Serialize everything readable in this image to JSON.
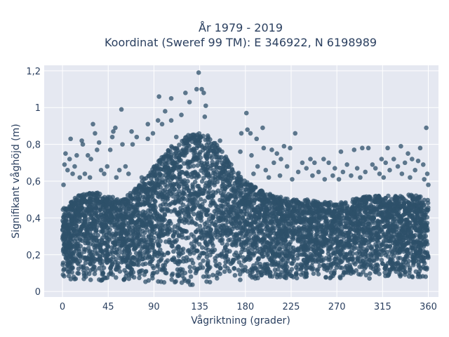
{
  "chart_data": {
    "type": "scatter",
    "title": "År 1979 - 2019",
    "subtitle": "Koordinat (Sweref 99 TM): E 346922, N 6198989",
    "xlabel": "Vågriktning (grader)",
    "ylabel": "Signifikant våghöjd (m)",
    "xlim": [
      -18,
      370
    ],
    "ylim": [
      -0.03,
      1.23
    ],
    "xticks": [
      0,
      45,
      90,
      135,
      180,
      225,
      270,
      315,
      360
    ],
    "xtick_labels": [
      "0",
      "45",
      "90",
      "135",
      "180",
      "225",
      "270",
      "315",
      "360"
    ],
    "yticks": [
      0,
      0.2,
      0.4,
      0.6,
      0.8,
      1.0,
      1.2
    ],
    "ytick_labels": [
      "0",
      "0,2",
      "0,4",
      "0,6",
      "0,8",
      "1",
      "1,2"
    ],
    "grid": true,
    "marker_color": "#2e5069",
    "plot_background": "#e5e8f1",
    "dense_envelope": {
      "direction": [
        0,
        15,
        30,
        45,
        60,
        75,
        90,
        105,
        120,
        135,
        150,
        165,
        180,
        195,
        210,
        225,
        240,
        255,
        270,
        285,
        300,
        315,
        330,
        345,
        360
      ],
      "min_height": [
        0.06,
        0.06,
        0.06,
        0.05,
        0.05,
        0.05,
        0.04,
        0.03,
        0.03,
        0.03,
        0.04,
        0.05,
        0.06,
        0.06,
        0.07,
        0.07,
        0.07,
        0.07,
        0.07,
        0.07,
        0.07,
        0.07,
        0.07,
        0.07,
        0.07
      ],
      "max_height": [
        0.45,
        0.52,
        0.55,
        0.52,
        0.5,
        0.58,
        0.68,
        0.78,
        0.84,
        0.88,
        0.82,
        0.7,
        0.6,
        0.55,
        0.52,
        0.5,
        0.5,
        0.49,
        0.48,
        0.5,
        0.52,
        0.52,
        0.52,
        0.53,
        0.5
      ]
    },
    "points": [
      [
        134,
        1.19
      ],
      [
        121,
        1.08
      ],
      [
        132,
        1.1
      ],
      [
        137,
        1.1
      ],
      [
        139,
        1.08
      ],
      [
        107,
        1.05
      ],
      [
        95,
        1.06
      ],
      [
        125,
        1.03
      ],
      [
        141,
        1.01
      ],
      [
        58,
        0.99
      ],
      [
        101,
        0.98
      ],
      [
        181,
        0.97
      ],
      [
        117,
        0.96
      ],
      [
        140,
        0.95
      ],
      [
        94,
        0.93
      ],
      [
        107,
        0.93
      ],
      [
        84,
        0.91
      ],
      [
        98,
        0.91
      ],
      [
        30,
        0.91
      ],
      [
        197,
        0.89
      ],
      [
        358,
        0.89
      ],
      [
        52,
        0.89
      ],
      [
        182,
        0.88
      ],
      [
        50,
        0.87
      ],
      [
        32,
        0.86
      ],
      [
        68,
        0.87
      ],
      [
        176,
        0.86
      ],
      [
        185,
        0.86
      ],
      [
        89,
        0.86
      ],
      [
        229,
        0.86
      ],
      [
        73,
        0.84
      ],
      [
        112,
        0.84
      ],
      [
        49,
        0.84
      ],
      [
        191,
        0.83
      ],
      [
        84,
        0.83
      ],
      [
        155,
        0.82
      ],
      [
        8,
        0.83
      ],
      [
        19,
        0.82
      ],
      [
        36,
        0.81
      ],
      [
        20,
        0.8
      ],
      [
        69,
        0.8
      ],
      [
        59,
        0.8
      ],
      [
        333,
        0.79
      ],
      [
        218,
        0.79
      ],
      [
        198,
        0.78
      ],
      [
        320,
        0.78
      ],
      [
        224,
        0.78
      ],
      [
        295,
        0.78
      ],
      [
        301,
        0.78
      ],
      [
        352,
        0.78
      ],
      [
        34,
        0.77
      ],
      [
        47,
        0.77
      ],
      [
        206,
        0.77
      ],
      [
        287,
        0.77
      ],
      [
        274,
        0.76
      ],
      [
        157,
        0.76
      ],
      [
        175,
        0.76
      ],
      [
        211,
        0.75
      ],
      [
        340,
        0.75
      ],
      [
        3,
        0.75
      ],
      [
        14,
        0.74
      ],
      [
        25,
        0.74
      ],
      [
        186,
        0.74
      ],
      [
        7,
        0.72
      ],
      [
        28,
        0.72
      ],
      [
        215,
        0.72
      ],
      [
        244,
        0.72
      ],
      [
        257,
        0.72
      ],
      [
        314,
        0.72
      ],
      [
        326,
        0.72
      ],
      [
        344,
        0.72
      ],
      [
        350,
        0.71
      ],
      [
        208,
        0.7
      ],
      [
        236,
        0.7
      ],
      [
        248,
        0.7
      ],
      [
        262,
        0.7
      ],
      [
        280,
        0.69
      ],
      [
        305,
        0.69
      ],
      [
        318,
        0.7
      ],
      [
        337,
        0.7
      ],
      [
        2,
        0.69
      ],
      [
        12,
        0.68
      ],
      [
        44,
        0.68
      ],
      [
        62,
        0.68
      ],
      [
        192,
        0.68
      ],
      [
        221,
        0.68
      ],
      [
        240,
        0.67
      ],
      [
        268,
        0.67
      ],
      [
        290,
        0.67
      ],
      [
        308,
        0.67
      ],
      [
        330,
        0.68
      ],
      [
        355,
        0.69
      ],
      [
        5,
        0.66
      ],
      [
        38,
        0.66
      ],
      [
        56,
        0.66
      ],
      [
        200,
        0.66
      ],
      [
        232,
        0.65
      ],
      [
        252,
        0.65
      ],
      [
        276,
        0.65
      ],
      [
        298,
        0.65
      ],
      [
        322,
        0.66
      ],
      [
        347,
        0.66
      ],
      [
        10,
        0.64
      ],
      [
        22,
        0.64
      ],
      [
        41,
        0.64
      ],
      [
        65,
        0.64
      ],
      [
        188,
        0.64
      ],
      [
        214,
        0.63
      ],
      [
        246,
        0.63
      ],
      [
        266,
        0.63
      ],
      [
        284,
        0.63
      ],
      [
        312,
        0.64
      ],
      [
        334,
        0.64
      ],
      [
        359,
        0.64
      ],
      [
        17,
        0.62
      ],
      [
        27,
        0.62
      ],
      [
        53,
        0.62
      ],
      [
        78,
        0.62
      ],
      [
        203,
        0.62
      ],
      [
        226,
        0.61
      ],
      [
        258,
        0.61
      ],
      [
        272,
        0.61
      ],
      [
        293,
        0.62
      ],
      [
        316,
        0.62
      ],
      [
        342,
        0.62
      ],
      [
        356,
        0.61
      ],
      [
        1,
        0.58
      ],
      [
        180,
        0.58
      ],
      [
        360,
        0.58
      ]
    ]
  }
}
